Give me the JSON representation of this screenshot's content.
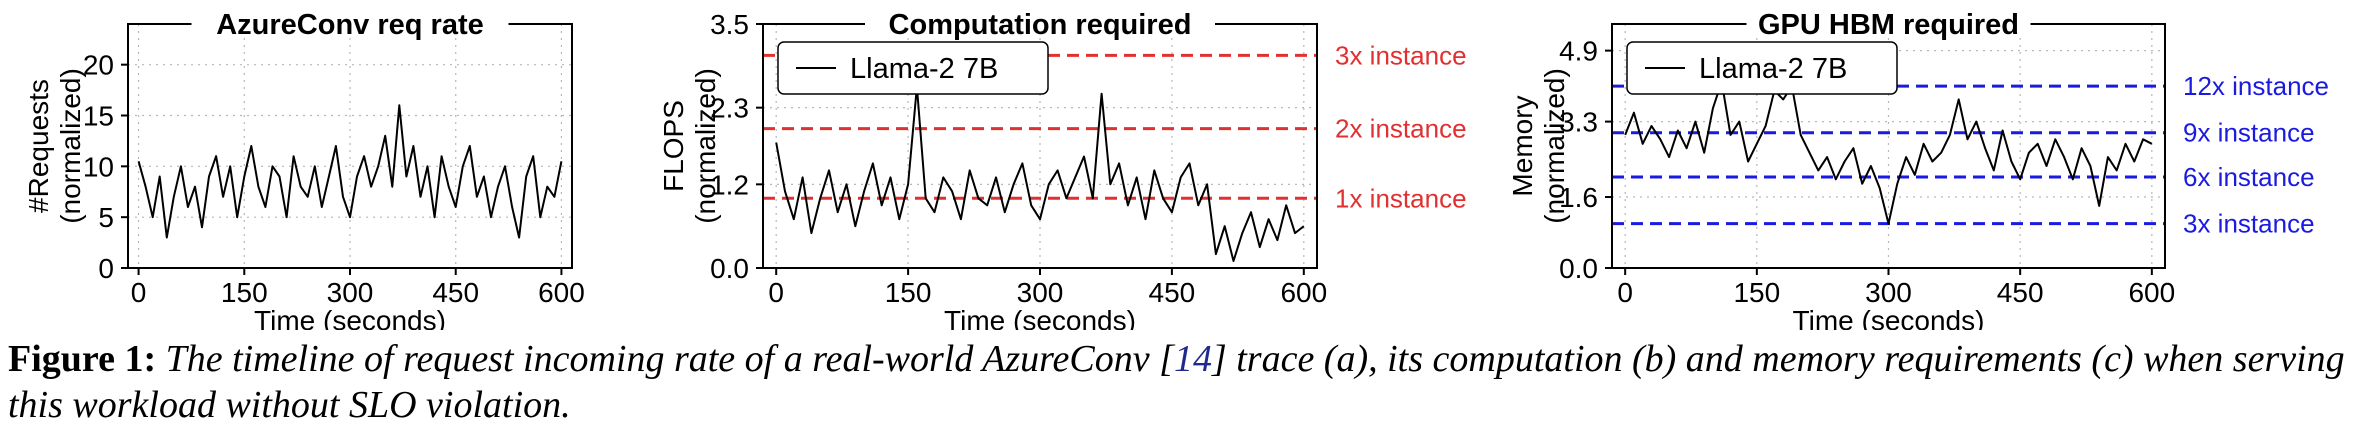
{
  "chart_data": [
    {
      "type": "line",
      "title": "AzureConv req rate",
      "xlabel": "Time (seconds)",
      "ylabel": [
        "#Requests",
        "(normalized)"
      ],
      "xlim": [
        -15,
        615
      ],
      "ylim": [
        0,
        24
      ],
      "xticks": [
        "0",
        "150",
        "300",
        "450",
        "600"
      ],
      "xtick_values": [
        0,
        150,
        300,
        450,
        600
      ],
      "yticks": [
        "0",
        "5",
        "10",
        "15",
        "20"
      ],
      "ytick_values": [
        0,
        5,
        10,
        15,
        20
      ],
      "grid": true,
      "series_color": "#000000",
      "x": [
        0,
        10,
        20,
        30,
        40,
        50,
        60,
        70,
        80,
        90,
        100,
        110,
        120,
        130,
        140,
        150,
        160,
        170,
        180,
        190,
        200,
        210,
        220,
        230,
        240,
        250,
        260,
        270,
        280,
        290,
        300,
        310,
        320,
        330,
        340,
        350,
        360,
        370,
        380,
        390,
        400,
        410,
        420,
        430,
        440,
        450,
        460,
        470,
        480,
        490,
        500,
        510,
        520,
        530,
        540,
        550,
        560,
        570,
        580,
        590,
        600
      ],
      "values": [
        10.5,
        8,
        5,
        9,
        3,
        7,
        10,
        6,
        8,
        4,
        9,
        11,
        7,
        10,
        5,
        9,
        12,
        8,
        6,
        10,
        9,
        5,
        11,
        8,
        7,
        10,
        6,
        9,
        12,
        7,
        5,
        9,
        11,
        8,
        10,
        13,
        8,
        16,
        9,
        12,
        7,
        10,
        5,
        11,
        8,
        6,
        10,
        12,
        7,
        9,
        5,
        8,
        10,
        6,
        3,
        9,
        11,
        5,
        8,
        7,
        10.5
      ]
    },
    {
      "type": "line",
      "title": "Computation required",
      "xlabel": "Time (seconds)",
      "ylabel": [
        "FLOPS",
        "(normalized)"
      ],
      "xlim": [
        -15,
        615
      ],
      "ylim": [
        0,
        3.5
      ],
      "xticks": [
        "0",
        "150",
        "300",
        "450",
        "600"
      ],
      "xtick_values": [
        0,
        150,
        300,
        450,
        600
      ],
      "yticks": [
        "0.0",
        "1.2",
        "2.3",
        "3.5"
      ],
      "ytick_values": [
        0.0,
        1.2,
        2.3,
        3.5
      ],
      "grid": true,
      "legend": {
        "label": "Llama-2 7B",
        "placement": "top-left"
      },
      "series_color": "#000000",
      "x": [
        0,
        10,
        20,
        30,
        40,
        50,
        60,
        70,
        80,
        90,
        100,
        110,
        120,
        130,
        140,
        150,
        160,
        170,
        180,
        190,
        200,
        210,
        220,
        230,
        240,
        250,
        260,
        270,
        280,
        290,
        300,
        310,
        320,
        330,
        340,
        350,
        360,
        370,
        380,
        390,
        400,
        410,
        420,
        430,
        440,
        450,
        460,
        470,
        480,
        490,
        500,
        510,
        520,
        530,
        540,
        550,
        560,
        570,
        580,
        590,
        600
      ],
      "values": [
        1.8,
        1.1,
        0.7,
        1.3,
        0.5,
        1.0,
        1.4,
        0.8,
        1.2,
        0.6,
        1.1,
        1.5,
        0.9,
        1.3,
        0.7,
        1.2,
        2.6,
        1.0,
        0.8,
        1.3,
        1.1,
        0.7,
        1.4,
        1.0,
        0.9,
        1.3,
        0.8,
        1.2,
        1.5,
        0.9,
        0.7,
        1.2,
        1.4,
        1.0,
        1.3,
        1.6,
        1.0,
        2.5,
        1.2,
        1.5,
        0.9,
        1.3,
        0.7,
        1.4,
        1.0,
        0.8,
        1.3,
        1.5,
        0.9,
        1.2,
        0.2,
        0.6,
        0.1,
        0.5,
        0.8,
        0.3,
        0.7,
        0.4,
        0.9,
        0.5,
        0.6
      ],
      "thresholds": [
        {
          "value": 1.0,
          "label": "1x instance"
        },
        {
          "value": 2.0,
          "label": "2x instance"
        },
        {
          "value": 3.05,
          "label": "3x instance"
        }
      ],
      "threshold_color": "#e03030"
    },
    {
      "type": "line",
      "title": "GPU HBM required",
      "xlabel": "Time (seconds)",
      "ylabel": [
        "Memory",
        "(normalized)"
      ],
      "xlim": [
        -15,
        615
      ],
      "ylim": [
        0,
        5.5
      ],
      "xticks": [
        "0",
        "150",
        "300",
        "450",
        "600"
      ],
      "xtick_values": [
        0,
        150,
        300,
        450,
        600
      ],
      "yticks": [
        "0.0",
        "1.6",
        "3.3",
        "4.9"
      ],
      "ytick_values": [
        0.0,
        1.6,
        3.3,
        4.9
      ],
      "grid": true,
      "legend": {
        "label": "Llama-2 7B",
        "placement": "top-left"
      },
      "series_color": "#000000",
      "x": [
        0,
        10,
        20,
        30,
        40,
        50,
        60,
        70,
        80,
        90,
        100,
        110,
        120,
        130,
        140,
        150,
        160,
        170,
        180,
        190,
        200,
        210,
        220,
        230,
        240,
        250,
        260,
        270,
        280,
        290,
        300,
        310,
        320,
        330,
        340,
        350,
        360,
        370,
        380,
        390,
        400,
        410,
        420,
        430,
        440,
        450,
        460,
        470,
        480,
        490,
        500,
        510,
        520,
        530,
        540,
        550,
        560,
        570,
        580,
        590,
        600
      ],
      "values": [
        3.0,
        3.5,
        2.8,
        3.2,
        2.9,
        2.5,
        3.1,
        2.7,
        3.3,
        2.6,
        3.6,
        4.2,
        3.0,
        3.3,
        2.4,
        2.8,
        3.2,
        4.0,
        3.8,
        4.1,
        3.0,
        2.6,
        2.2,
        2.5,
        2.0,
        2.4,
        2.7,
        1.9,
        2.3,
        1.8,
        1.0,
        1.9,
        2.5,
        2.1,
        2.8,
        2.4,
        2.6,
        3.0,
        3.8,
        2.9,
        3.3,
        2.7,
        2.2,
        3.1,
        2.4,
        2.0,
        2.6,
        2.8,
        2.3,
        2.9,
        2.5,
        2.0,
        2.7,
        2.3,
        1.4,
        2.5,
        2.2,
        2.8,
        2.4,
        2.9,
        2.8
      ],
      "thresholds": [
        {
          "value": 1.0,
          "label": "3x instance"
        },
        {
          "value": 2.05,
          "label": "6x instance"
        },
        {
          "value": 3.05,
          "label": "9x instance"
        },
        {
          "value": 4.1,
          "label": "12x instance"
        }
      ],
      "threshold_color": "#1a1ae0"
    }
  ],
  "caption": {
    "label": "Figure 1:",
    "text_before": "The timeline of request incoming rate of a real-world AzureConv [",
    "citation": "14",
    "text_after": "] trace (a), its computation (b) and memory requirements (c) when serving this workload without SLO violation."
  }
}
